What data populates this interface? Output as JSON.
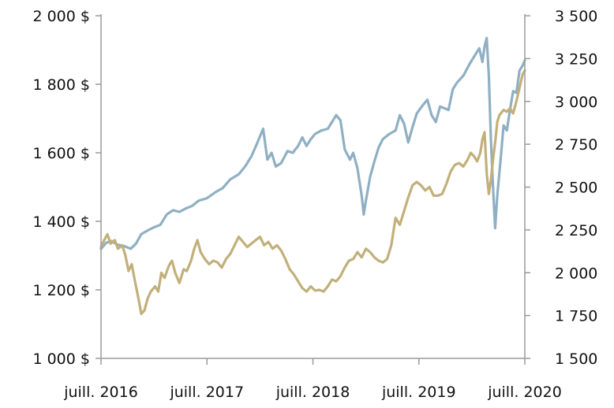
{
  "chart_data": {
    "type": "line",
    "title": "",
    "xlabel": "",
    "ylabel": "",
    "x_ticks": [
      {
        "label": "juill. 2016",
        "t": 2016.5
      },
      {
        "label": "juill. 2017",
        "t": 2017.5
      },
      {
        "label": "juill. 2018",
        "t": 2018.5
      },
      {
        "label": "juill. 2019",
        "t": 2019.5
      },
      {
        "label": "juill. 2020",
        "t": 2020.5
      }
    ],
    "xlim": [
      2016.5,
      2020.5
    ],
    "left_axis": {
      "ylim": [
        1000,
        2000
      ],
      "ticks": [
        {
          "value": 1000,
          "label": "1 000 $"
        },
        {
          "value": 1200,
          "label": "1 200 $"
        },
        {
          "value": 1400,
          "label": "1 400 $"
        },
        {
          "value": 1600,
          "label": "1 600 $"
        },
        {
          "value": 1800,
          "label": "1 800 $"
        },
        {
          "value": 2000,
          "label": "2 000 $"
        }
      ]
    },
    "right_axis": {
      "ylim": [
        1500,
        3500
      ],
      "ticks": [
        {
          "value": 1500,
          "label": "1 500"
        },
        {
          "value": 1750,
          "label": "1 750"
        },
        {
          "value": 2000,
          "label": "2 000"
        },
        {
          "value": 2250,
          "label": "2 250"
        },
        {
          "value": 2500,
          "label": "2 500"
        },
        {
          "value": 2750,
          "label": "2 750"
        },
        {
          "value": 3000,
          "label": "3 000"
        },
        {
          "value": 3250,
          "label": "3 250"
        },
        {
          "value": 3500,
          "label": "3 500"
        }
      ]
    },
    "grid": false,
    "legend": "none",
    "series": [
      {
        "axis": "right",
        "color": "#8fb0c3",
        "points": [
          [
            2016.5,
            2140
          ],
          [
            2016.55,
            2175
          ],
          [
            2016.6,
            2185
          ],
          [
            2016.65,
            2165
          ],
          [
            2016.72,
            2155
          ],
          [
            2016.78,
            2140
          ],
          [
            2016.83,
            2170
          ],
          [
            2016.88,
            2225
          ],
          [
            2016.95,
            2250
          ],
          [
            2017.0,
            2265
          ],
          [
            2017.06,
            2280
          ],
          [
            2017.12,
            2340
          ],
          [
            2017.18,
            2365
          ],
          [
            2017.24,
            2355
          ],
          [
            2017.3,
            2375
          ],
          [
            2017.36,
            2390
          ],
          [
            2017.42,
            2420
          ],
          [
            2017.5,
            2435
          ],
          [
            2017.58,
            2470
          ],
          [
            2017.65,
            2495
          ],
          [
            2017.72,
            2545
          ],
          [
            2017.8,
            2575
          ],
          [
            2017.86,
            2620
          ],
          [
            2017.92,
            2680
          ],
          [
            2017.97,
            2750
          ],
          [
            2018.03,
            2840
          ],
          [
            2018.07,
            2660
          ],
          [
            2018.11,
            2700
          ],
          [
            2018.15,
            2620
          ],
          [
            2018.2,
            2640
          ],
          [
            2018.26,
            2710
          ],
          [
            2018.31,
            2700
          ],
          [
            2018.36,
            2740
          ],
          [
            2018.4,
            2790
          ],
          [
            2018.44,
            2740
          ],
          [
            2018.48,
            2780
          ],
          [
            2018.52,
            2810
          ],
          [
            2018.58,
            2830
          ],
          [
            2018.64,
            2840
          ],
          [
            2018.68,
            2880
          ],
          [
            2018.72,
            2920
          ],
          [
            2018.76,
            2890
          ],
          [
            2018.8,
            2720
          ],
          [
            2018.85,
            2660
          ],
          [
            2018.88,
            2700
          ],
          [
            2018.92,
            2610
          ],
          [
            2018.96,
            2450
          ],
          [
            2018.98,
            2340
          ],
          [
            2019.0,
            2420
          ],
          [
            2019.04,
            2560
          ],
          [
            2019.08,
            2650
          ],
          [
            2019.12,
            2730
          ],
          [
            2019.16,
            2780
          ],
          [
            2019.22,
            2810
          ],
          [
            2019.28,
            2830
          ],
          [
            2019.32,
            2920
          ],
          [
            2019.36,
            2870
          ],
          [
            2019.4,
            2760
          ],
          [
            2019.44,
            2850
          ],
          [
            2019.48,
            2930
          ],
          [
            2019.54,
            2980
          ],
          [
            2019.58,
            3010
          ],
          [
            2019.62,
            2920
          ],
          [
            2019.66,
            2880
          ],
          [
            2019.7,
            2970
          ],
          [
            2019.74,
            2960
          ],
          [
            2019.78,
            2950
          ],
          [
            2019.82,
            3070
          ],
          [
            2019.86,
            3110
          ],
          [
            2019.92,
            3150
          ],
          [
            2019.98,
            3220
          ],
          [
            2020.03,
            3270
          ],
          [
            2020.07,
            3310
          ],
          [
            2020.1,
            3230
          ],
          [
            2020.12,
            3320
          ],
          [
            2020.14,
            3370
          ],
          [
            2020.16,
            3150
          ],
          [
            2020.18,
            2780
          ],
          [
            2020.2,
            2500
          ],
          [
            2020.22,
            2260
          ],
          [
            2020.24,
            2450
          ],
          [
            2020.27,
            2650
          ],
          [
            2020.3,
            2860
          ],
          [
            2020.33,
            2830
          ],
          [
            2020.36,
            2950
          ],
          [
            2020.39,
            3060
          ],
          [
            2020.42,
            3050
          ],
          [
            2020.45,
            3180
          ],
          [
            2020.48,
            3210
          ],
          [
            2020.5,
            3240
          ]
        ]
      },
      {
        "axis": "left",
        "color": "#c2b07a",
        "points": [
          [
            2016.5,
            1325
          ],
          [
            2016.53,
            1345
          ],
          [
            2016.56,
            1362
          ],
          [
            2016.59,
            1335
          ],
          [
            2016.63,
            1345
          ],
          [
            2016.66,
            1320
          ],
          [
            2016.7,
            1330
          ],
          [
            2016.73,
            1300
          ],
          [
            2016.76,
            1255
          ],
          [
            2016.79,
            1275
          ],
          [
            2016.82,
            1225
          ],
          [
            2016.85,
            1180
          ],
          [
            2016.88,
            1130
          ],
          [
            2016.91,
            1140
          ],
          [
            2016.94,
            1175
          ],
          [
            2016.97,
            1195
          ],
          [
            2017.01,
            1210
          ],
          [
            2017.04,
            1195
          ],
          [
            2017.07,
            1250
          ],
          [
            2017.1,
            1235
          ],
          [
            2017.14,
            1270
          ],
          [
            2017.17,
            1285
          ],
          [
            2017.2,
            1250
          ],
          [
            2017.24,
            1220
          ],
          [
            2017.28,
            1260
          ],
          [
            2017.31,
            1255
          ],
          [
            2017.35,
            1285
          ],
          [
            2017.38,
            1320
          ],
          [
            2017.41,
            1345
          ],
          [
            2017.44,
            1310
          ],
          [
            2017.48,
            1290
          ],
          [
            2017.52,
            1275
          ],
          [
            2017.56,
            1285
          ],
          [
            2017.6,
            1280
          ],
          [
            2017.64,
            1265
          ],
          [
            2017.68,
            1290
          ],
          [
            2017.72,
            1305
          ],
          [
            2017.76,
            1330
          ],
          [
            2017.8,
            1355
          ],
          [
            2017.84,
            1340
          ],
          [
            2017.88,
            1325
          ],
          [
            2017.92,
            1335
          ],
          [
            2017.96,
            1345
          ],
          [
            2018.0,
            1355
          ],
          [
            2018.04,
            1330
          ],
          [
            2018.08,
            1340
          ],
          [
            2018.12,
            1320
          ],
          [
            2018.16,
            1330
          ],
          [
            2018.2,
            1315
          ],
          [
            2018.24,
            1290
          ],
          [
            2018.28,
            1260
          ],
          [
            2018.32,
            1245
          ],
          [
            2018.36,
            1225
          ],
          [
            2018.4,
            1205
          ],
          [
            2018.44,
            1195
          ],
          [
            2018.48,
            1210
          ],
          [
            2018.52,
            1198
          ],
          [
            2018.56,
            1200
          ],
          [
            2018.6,
            1195
          ],
          [
            2018.64,
            1210
          ],
          [
            2018.68,
            1230
          ],
          [
            2018.72,
            1225
          ],
          [
            2018.76,
            1240
          ],
          [
            2018.8,
            1265
          ],
          [
            2018.84,
            1285
          ],
          [
            2018.88,
            1290
          ],
          [
            2018.92,
            1310
          ],
          [
            2018.96,
            1295
          ],
          [
            2019.0,
            1320
          ],
          [
            2019.04,
            1310
          ],
          [
            2019.08,
            1295
          ],
          [
            2019.12,
            1285
          ],
          [
            2019.16,
            1280
          ],
          [
            2019.2,
            1290
          ],
          [
            2019.24,
            1330
          ],
          [
            2019.28,
            1410
          ],
          [
            2019.32,
            1390
          ],
          [
            2019.36,
            1430
          ],
          [
            2019.4,
            1470
          ],
          [
            2019.44,
            1505
          ],
          [
            2019.48,
            1515
          ],
          [
            2019.52,
            1505
          ],
          [
            2019.56,
            1490
          ],
          [
            2019.6,
            1500
          ],
          [
            2019.64,
            1475
          ],
          [
            2019.68,
            1475
          ],
          [
            2019.72,
            1480
          ],
          [
            2019.76,
            1510
          ],
          [
            2019.8,
            1545
          ],
          [
            2019.84,
            1565
          ],
          [
            2019.88,
            1570
          ],
          [
            2019.92,
            1560
          ],
          [
            2019.96,
            1580
          ],
          [
            2019.99,
            1600
          ],
          [
            2020.02,
            1590
          ],
          [
            2020.05,
            1575
          ],
          [
            2020.08,
            1600
          ],
          [
            2020.1,
            1640
          ],
          [
            2020.12,
            1660
          ],
          [
            2020.14,
            1540
          ],
          [
            2020.16,
            1480
          ],
          [
            2020.18,
            1520
          ],
          [
            2020.2,
            1580
          ],
          [
            2020.22,
            1630
          ],
          [
            2020.24,
            1690
          ],
          [
            2020.26,
            1710
          ],
          [
            2020.3,
            1725
          ],
          [
            2020.33,
            1720
          ],
          [
            2020.36,
            1730
          ],
          [
            2020.39,
            1715
          ],
          [
            2020.42,
            1750
          ],
          [
            2020.45,
            1790
          ],
          [
            2020.48,
            1830
          ],
          [
            2020.5,
            1840
          ]
        ]
      }
    ]
  }
}
